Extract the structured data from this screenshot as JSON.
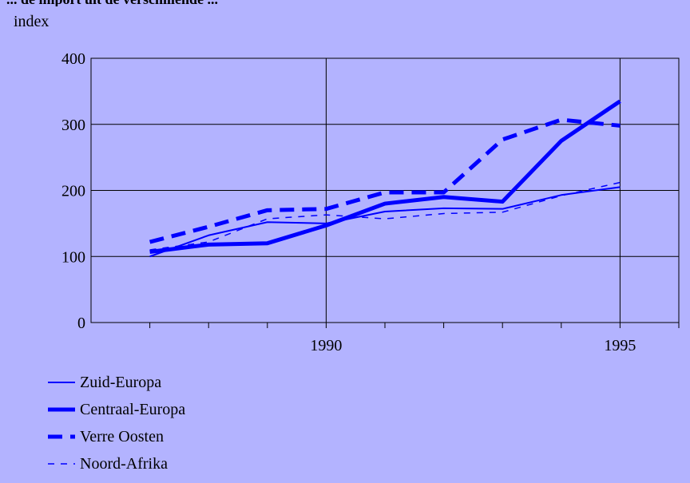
{
  "chart_data": {
    "type": "line",
    "title": "... de import uit de verschillende ...",
    "ylabel": "index",
    "xlabel": "",
    "xlim": [
      1986,
      1996
    ],
    "ylim": [
      0,
      400
    ],
    "x_ticks": [
      1987,
      1988,
      1989,
      1990,
      1991,
      1992,
      1993,
      1994,
      1995,
      1996
    ],
    "x_tick_labels": [
      {
        "x": 1990,
        "label": "1990"
      },
      {
        "x": 1995,
        "label": "1995"
      }
    ],
    "y_ticks": [
      0,
      100,
      200,
      300,
      400
    ],
    "grid": true,
    "legend_position": "bottom-left",
    "x": [
      1987,
      1988,
      1989,
      1990,
      1991,
      1992,
      1993,
      1994,
      1995
    ],
    "series": [
      {
        "name": "Zuid-Europa",
        "style": "thin-solid",
        "values": [
          100,
          132,
          152,
          150,
          168,
          173,
          172,
          193,
          205
        ]
      },
      {
        "name": "Centraal-Europa",
        "style": "thick-solid",
        "values": [
          107,
          118,
          120,
          147,
          180,
          190,
          183,
          275,
          335
        ]
      },
      {
        "name": "Verre Oosten",
        "style": "thick-dashed",
        "values": [
          122,
          145,
          170,
          172,
          197,
          197,
          277,
          307,
          298
        ]
      },
      {
        "name": "Noord-Afrika",
        "style": "thin-dashed",
        "values": [
          110,
          122,
          157,
          163,
          157,
          165,
          167,
          192,
          212
        ]
      }
    ]
  },
  "colors": {
    "background": "#b3b3ff",
    "line": "#0000ff",
    "grid": "#000000"
  }
}
